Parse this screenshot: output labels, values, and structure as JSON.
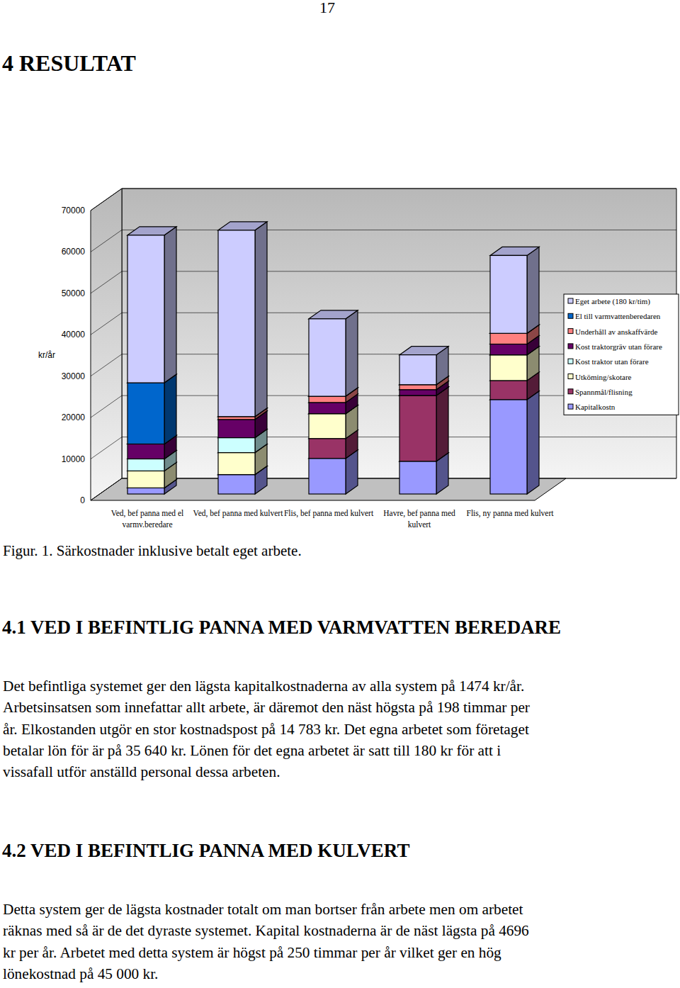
{
  "page_number": "17",
  "heading": "4 RESULTAT",
  "chart_data": {
    "type": "bar",
    "stacked": true,
    "y_label": "kr/år",
    "categories": [
      "Ved, bef panna med el varmv.beredare",
      "Ved, bef panna med kulvert",
      "Flis, bef panna med kulvert",
      "Havre, bef panna med kulvert",
      "Flis, ny panna med kulvert"
    ],
    "series": [
      {
        "name": "Kapitalkostn",
        "color": "#9999ff",
        "values": [
          1474,
          4696,
          8600,
          7900,
          22800
        ]
      },
      {
        "name": "Spannmål/flisning",
        "color": "#993366",
        "values": [
          0,
          0,
          4800,
          15900,
          4600
        ]
      },
      {
        "name": "Utköming/skotare",
        "color": "#ffffcc",
        "values": [
          4100,
          5300,
          6000,
          0,
          6200
        ]
      },
      {
        "name": "Kost traktor utan förare",
        "color": "#ccffff",
        "values": [
          2900,
          3600,
          0,
          0,
          0
        ]
      },
      {
        "name": "Kost traktorgräv utan förare",
        "color": "#660066",
        "values": [
          3600,
          4400,
          2700,
          1400,
          2600
        ]
      },
      {
        "name": "Underhåll av anskaffvärde",
        "color": "#ff8080",
        "values": [
          0,
          700,
          1500,
          1200,
          2600
        ]
      },
      {
        "name": "El till varmvattenberedaren",
        "color": "#0066cc",
        "values": [
          14783,
          0,
          0,
          0,
          0
        ]
      },
      {
        "name": "Eget arbete (180 kr/tim)",
        "color": "#ccccff",
        "values": [
          35640,
          45000,
          18700,
          7200,
          18800
        ]
      }
    ],
    "ylim": [
      0,
      70000
    ],
    "yticks": [
      0,
      10000,
      20000,
      30000,
      40000,
      50000,
      60000,
      70000
    ],
    "grid": true,
    "legend": "right"
  },
  "caption": "Figur. 1. Särkostnader inklusive betalt eget arbete.",
  "sections": [
    {
      "heading": "4.1 VED I BEFINTLIG PANNA MED VARMVATTEN BEREDARE",
      "lines": [
        "Det befintliga systemet ger den lägsta kapitalkostnaderna av alla system på 1474 kr/år.",
        "Arbetsinsatsen som innefattar allt arbete, är däremot den näst högsta på 198 timmar per",
        "år. Elkostanden utgör en stor kostnadspost på 14 783 kr. Det egna arbetet som företaget",
        "betalar lön för är på 35 640 kr. Lönen för det egna arbetet är satt till 180 kr för att i",
        "vissafall utför anställd personal dessa arbeten."
      ]
    },
    {
      "heading": "4.2 VED I BEFINTLIG PANNA MED KULVERT",
      "lines": [
        "Detta system ger de lägsta kostnader totalt om man bortser från arbete men om arbetet",
        "räknas med så är de det dyraste systemet. Kapital kostnaderna är de näst lägsta på 4696",
        "kr per år. Arbetet med detta system är högst på 250 timmar per år vilket ger en hög",
        "lönekostnad på 45 000 kr."
      ]
    }
  ]
}
